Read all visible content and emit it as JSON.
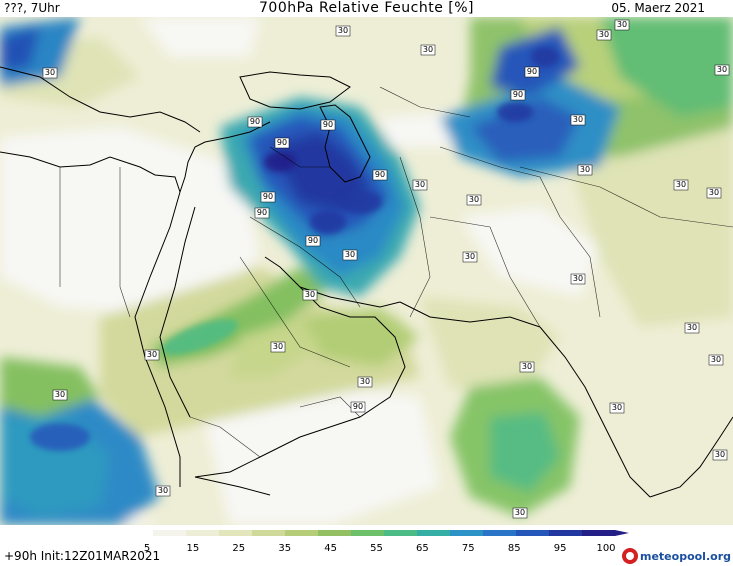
{
  "header": {
    "left": "???, 7Uhr",
    "title": "700hPa Relative Feuchte [%]",
    "date": "05. Maerz 2021"
  },
  "footer": {
    "run": "+90h Init:12Z01MAR2021",
    "logo": "meteopool.org"
  },
  "colorbar": {
    "ticks": [
      "5",
      "15",
      "25",
      "35",
      "45",
      "55",
      "65",
      "75",
      "85",
      "95",
      "100"
    ],
    "colors": [
      "#ffffff",
      "#f4f4ec",
      "#eeeed6",
      "#e3e6bb",
      "#cfd99a",
      "#b5cc78",
      "#93c062",
      "#6dbf6a",
      "#4dbb85",
      "#35aea6",
      "#2d93c6",
      "#2a75c8",
      "#2556b9",
      "#2238a0",
      "#241f87"
    ]
  },
  "contour_labels": {
    "humid": [
      "90",
      "90",
      "90",
      "90",
      "90",
      "90",
      "90",
      "90",
      "90",
      "90"
    ],
    "dry": [
      "30",
      "30",
      "30",
      "30",
      "30",
      "30",
      "30",
      "30",
      "30",
      "30",
      "30",
      "30",
      "30",
      "30",
      "30",
      "30",
      "30",
      "30",
      "30",
      "30",
      "30",
      "30",
      "30",
      "30",
      "30",
      "30",
      "30"
    ]
  }
}
